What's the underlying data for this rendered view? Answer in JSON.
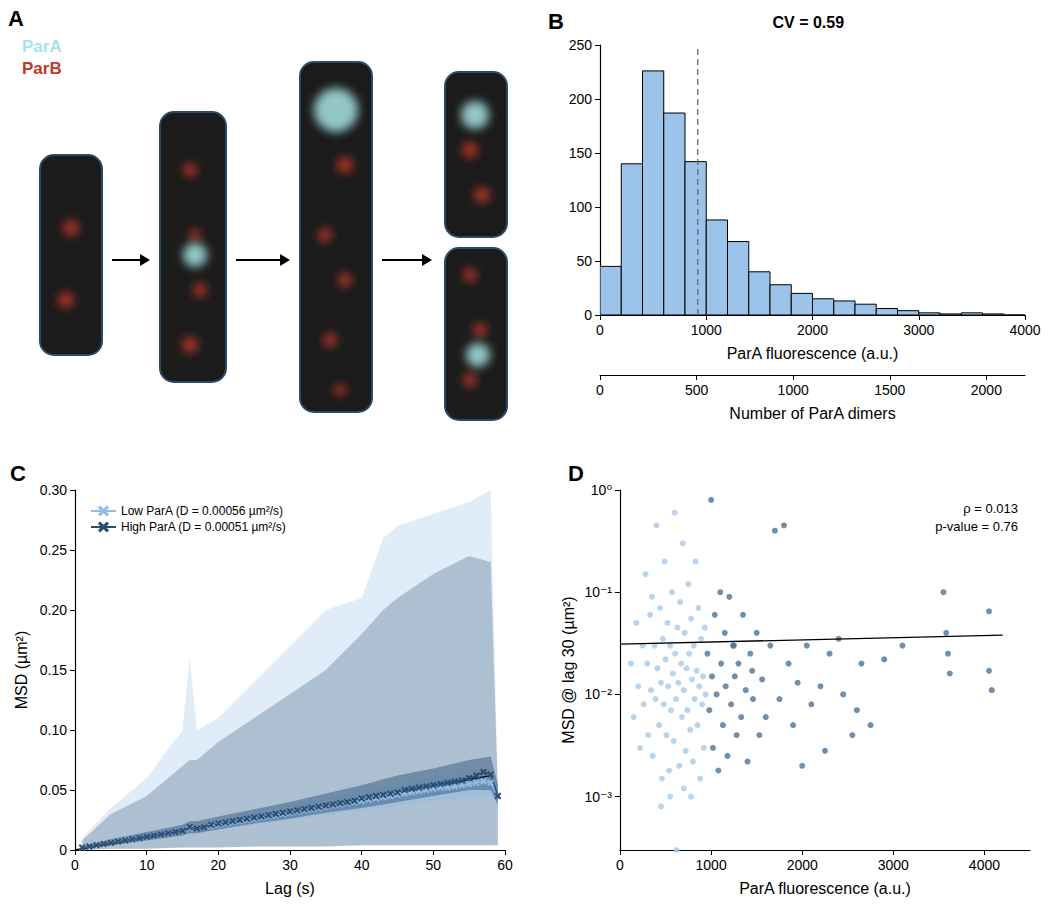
{
  "diagram": {
    "panel": "A",
    "labels": [
      {
        "text": "ParA",
        "color": "#a8e4e4"
      },
      {
        "text": "ParB",
        "color": "#c0392b"
      }
    ]
  },
  "chart_data": [
    {
      "panel": "B",
      "type": "histogram",
      "title": "CV = 0.59",
      "x_label": "ParA fluorescence (a.u.)",
      "bins": [
        0,
        200,
        400,
        600,
        800,
        1000,
        1200,
        1400,
        1600,
        1800,
        2000,
        2200,
        2400,
        2600,
        2800,
        3000,
        3200,
        3400,
        3600,
        3800,
        4000
      ],
      "counts": [
        45,
        140,
        226,
        187,
        142,
        88,
        68,
        40,
        28,
        20,
        15,
        13,
        10,
        6,
        4,
        2,
        1,
        2,
        1,
        0
      ],
      "color": "#9cc3ea",
      "mean": 920,
      "line_style": "dashed",
      "xlim": [
        0,
        4000
      ],
      "xticks": [
        0,
        1000,
        2000,
        3000,
        4000
      ],
      "ylim": [
        0,
        250
      ],
      "yticks": [
        0,
        50,
        100,
        150,
        200,
        250
      ],
      "x2_label": "Number of ParA dimers",
      "x2lim": [
        0,
        2200
      ],
      "x2ticks": [
        0,
        500,
        1000,
        1500,
        2000
      ],
      "grid": false
    },
    {
      "panel": "C",
      "type": "line",
      "x_label": "Lag (s)",
      "y_label": "MSD (µm²)",
      "xlim": [
        0,
        60
      ],
      "xticks": [
        0,
        10,
        20,
        30,
        40,
        50,
        60
      ],
      "ylim": [
        0,
        0.3
      ],
      "yticks": [
        0,
        0.05,
        {
          "value": 0.1,
          "label": "0.10"
        },
        0.15,
        {
          "value": 0.2,
          "label": "0.20"
        },
        0.25,
        {
          "value": 0.3,
          "label": "0.30"
        }
      ],
      "grid": false,
      "legend": "upper left",
      "marker": "x",
      "x": [
        1,
        2,
        3,
        4,
        5,
        6,
        7,
        8,
        9,
        10,
        11,
        12,
        13,
        14,
        15,
        16,
        17,
        18,
        19,
        20,
        21,
        22,
        23,
        24,
        25,
        26,
        27,
        28,
        29,
        30,
        31,
        32,
        33,
        34,
        35,
        36,
        37,
        38,
        39,
        40,
        41,
        42,
        43,
        44,
        45,
        46,
        47,
        48,
        49,
        50,
        51,
        52,
        53,
        54,
        55,
        56,
        57,
        58,
        59
      ],
      "series": [
        {
          "name": "Low ParA (D = 0.00056 µm²/s)",
          "color": "#8fbde8",
          "values": [
            0.002,
            0.003,
            0.004,
            0.005,
            0.006,
            0.007,
            0.008,
            0.009,
            0.01,
            0.011,
            0.012,
            0.013,
            0.014,
            0.015,
            0.016,
            0.018,
            0.018,
            0.019,
            0.02,
            0.021,
            0.022,
            0.023,
            0.024,
            0.025,
            0.026,
            0.027,
            0.028,
            0.029,
            0.03,
            0.031,
            0.032,
            0.033,
            0.034,
            0.035,
            0.036,
            0.037,
            0.038,
            0.039,
            0.04,
            0.041,
            0.042,
            0.043,
            0.044,
            0.045,
            0.046,
            0.047,
            0.048,
            0.049,
            0.05,
            0.051,
            0.052,
            0.052,
            0.053,
            0.054,
            0.055,
            0.056,
            0.057,
            0.056,
            0.045
          ],
          "spread": {
            "x": [
              1,
              5,
              10,
              15,
              16,
              17,
              20,
              25,
              30,
              35,
              40,
              43,
              45,
              50,
              55,
              58,
              59
            ],
            "low": [
              0,
              0.001,
              0.001,
              0.002,
              0.002,
              0.002,
              0.002,
              0.003,
              0.003,
              0.003,
              0.004,
              0.004,
              0.004,
              0.004,
              0.004,
              0.004,
              0.004
            ],
            "high": [
              0.01,
              0.035,
              0.06,
              0.1,
              0.16,
              0.1,
              0.11,
              0.14,
              0.17,
              0.2,
              0.21,
              0.26,
              0.27,
              0.28,
              0.29,
              0.3,
              0.05
            ]
          },
          "ci": {
            "x": [
              1,
              5,
              10,
              15,
              16,
              17,
              20,
              25,
              30,
              35,
              40,
              43,
              45,
              50,
              55,
              58,
              59
            ],
            "low": [
              0.001,
              0.004,
              0.008,
              0.012,
              0.014,
              0.014,
              0.017,
              0.021,
              0.025,
              0.029,
              0.033,
              0.035,
              0.037,
              0.041,
              0.044,
              0.045,
              0.035
            ],
            "high": [
              0.003,
              0.008,
              0.014,
              0.02,
              0.022,
              0.022,
              0.026,
              0.032,
              0.038,
              0.044,
              0.05,
              0.054,
              0.056,
              0.062,
              0.066,
              0.068,
              0.055
            ]
          }
        },
        {
          "name": "High ParA (D = 0.00051 µm²/s)",
          "color": "#2b4d70",
          "values": [
            0.002,
            0.003,
            0.004,
            0.005,
            0.006,
            0.007,
            0.008,
            0.009,
            0.01,
            0.011,
            0.012,
            0.013,
            0.014,
            0.015,
            0.016,
            0.019,
            0.018,
            0.019,
            0.021,
            0.022,
            0.023,
            0.024,
            0.025,
            0.026,
            0.027,
            0.028,
            0.029,
            0.03,
            0.031,
            0.032,
            0.033,
            0.034,
            0.035,
            0.036,
            0.037,
            0.038,
            0.039,
            0.04,
            0.041,
            0.043,
            0.044,
            0.045,
            0.046,
            0.047,
            0.048,
            0.05,
            0.051,
            0.052,
            0.053,
            0.054,
            0.055,
            0.056,
            0.057,
            0.058,
            0.06,
            0.062,
            0.065,
            0.063,
            0.045
          ],
          "spread": {
            "x": [
              1,
              5,
              10,
              15,
              16,
              17,
              20,
              25,
              30,
              35,
              40,
              43,
              45,
              50,
              55,
              58,
              59
            ],
            "low": [
              0,
              0.001,
              0.001,
              0.002,
              0.002,
              0.002,
              0.002,
              0.003,
              0.003,
              0.003,
              0.004,
              0.004,
              0.004,
              0.004,
              0.004,
              0.004,
              0.004
            ],
            "high": [
              0.008,
              0.03,
              0.045,
              0.07,
              0.075,
              0.075,
              0.09,
              0.11,
              0.13,
              0.15,
              0.18,
              0.2,
              0.21,
              0.23,
              0.245,
              0.24,
              0.05
            ]
          },
          "ci": {
            "x": [
              1,
              5,
              10,
              15,
              16,
              17,
              20,
              25,
              30,
              35,
              40,
              43,
              45,
              50,
              55,
              58,
              59
            ],
            "low": [
              0.001,
              0.004,
              0.008,
              0.012,
              0.014,
              0.014,
              0.017,
              0.022,
              0.026,
              0.031,
              0.035,
              0.038,
              0.04,
              0.045,
              0.05,
              0.05,
              0.038
            ],
            "high": [
              0.003,
              0.009,
              0.015,
              0.021,
              0.024,
              0.024,
              0.028,
              0.034,
              0.04,
              0.047,
              0.054,
              0.059,
              0.062,
              0.068,
              0.075,
              0.078,
              0.055
            ]
          }
        }
      ],
      "fit": {
        "x": [
          0,
          58
        ],
        "values": [
          0,
          0.062
        ],
        "color": "#000000"
      }
    },
    {
      "panel": "D",
      "type": "scatter",
      "x_label": "ParA fluorescence (a.u.)",
      "y_label": "MSD @ lag 30 (µm²)",
      "log": "y",
      "grid": false,
      "xlim": [
        0,
        4500
      ],
      "xticks": [
        0,
        1000,
        2000,
        3000,
        4000
      ],
      "ylim": [
        0.0003,
        1
      ],
      "yticks": [
        {
          "value": 0.001,
          "label": "10⁻³"
        },
        {
          "value": 0.01,
          "label": "10⁻²"
        },
        {
          "value": 0.1,
          "label": "10⁻¹"
        },
        {
          "value": 1,
          "label": "10⁰"
        }
      ],
      "annotations": [
        "ρ = 0.013",
        "p-value = 0.76"
      ],
      "series": [
        {
          "color": "#a7c9e8",
          "x": [
            120,
            150,
            180,
            200,
            220,
            250,
            260,
            280,
            300,
            310,
            330,
            340,
            360,
            380,
            390,
            400,
            410,
            430,
            440,
            450,
            460,
            470,
            480,
            490,
            500,
            510,
            520,
            530,
            540,
            550,
            560,
            570,
            580,
            590,
            600,
            605,
            615,
            620,
            630,
            640,
            650,
            660,
            670,
            680,
            690,
            700,
            710,
            720,
            730,
            740,
            750,
            760,
            770,
            780,
            790,
            800,
            810,
            820,
            830,
            840,
            850,
            860,
            870,
            880,
            890,
            900,
            910,
            920,
            930,
            940,
            700,
            450,
            350,
            550,
            780
          ],
          "values": [
            0.02,
            0.006,
            0.05,
            0.012,
            0.003,
            0.03,
            0.008,
            0.15,
            0.02,
            0.004,
            0.06,
            0.011,
            0.0025,
            0.03,
            0.009,
            0.45,
            0.018,
            0.005,
            0.07,
            0.013,
            0.0015,
            0.035,
            0.008,
            0.2,
            0.022,
            0.004,
            0.05,
            0.012,
            0.0018,
            0.03,
            0.007,
            0.1,
            0.016,
            0.0035,
            0.6,
            0.025,
            0.009,
            0.0003,
            0.045,
            0.013,
            0.002,
            0.08,
            0.02,
            0.006,
            0.3,
            0.011,
            0.04,
            0.0028,
            0.018,
            0.007,
            0.12,
            0.025,
            0.0045,
            0.055,
            0.014,
            0.0022,
            0.03,
            0.009,
            0.2,
            0.017,
            0.005,
            0.07,
            0.012,
            0.0015,
            0.035,
            0.008,
            0.015,
            0.003,
            0.045,
            0.01,
            0.0012,
            0.0008,
            0.09,
            0.001,
            0.001
          ]
        },
        {
          "color": "#4d7396",
          "x": [
            960,
            980,
            1000,
            1010,
            1020,
            1040,
            1060,
            1080,
            1100,
            1110,
            1130,
            1150,
            1160,
            1180,
            1200,
            1220,
            1240,
            1260,
            1280,
            1300,
            1330,
            1350,
            1380,
            1400,
            1430,
            1460,
            1500,
            1530,
            1560,
            1600,
            1650,
            1700,
            1750,
            1800,
            1850,
            1900,
            1950,
            2000,
            2050,
            2100,
            2200,
            2250,
            2300,
            2400,
            2450,
            2550,
            2600,
            2650,
            2750,
            2900,
            3100,
            3550,
            3580,
            3600,
            3620,
            4050,
            4050,
            4080,
            1250,
            1450
          ],
          "values": [
            0.025,
            0.007,
            0.8,
            0.015,
            0.003,
            0.06,
            0.01,
            0.0018,
            0.1,
            0.02,
            0.005,
            0.04,
            0.012,
            0.0025,
            0.09,
            0.008,
            0.03,
            0.015,
            0.004,
            0.02,
            0.006,
            0.06,
            0.011,
            0.0022,
            0.025,
            0.009,
            0.04,
            0.004,
            0.014,
            0.006,
            0.03,
            0.4,
            0.009,
            0.45,
            0.02,
            0.005,
            0.013,
            0.002,
            0.03,
            0.008,
            0.012,
            0.0028,
            0.025,
            0.035,
            0.01,
            0.004,
            0.007,
            0.02,
            0.005,
            0.022,
            0.03,
            0.1,
            0.04,
            0.025,
            0.016,
            0.065,
            0.017,
            0.011,
            0.03,
            0.017
          ]
        }
      ],
      "fit": {
        "x": [
          0,
          4200
        ],
        "values": [
          0.031,
          0.038
        ],
        "color": "#000000"
      }
    }
  ]
}
